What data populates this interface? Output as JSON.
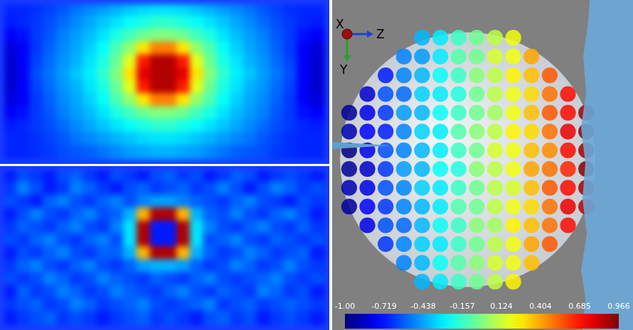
{
  "chart_data": [
    {
      "type": "heatmap",
      "tick_labels": false,
      "color_range": [
        0,
        1
      ],
      "cells": [
        [
          0.16,
          0.16,
          0.17,
          0.19,
          0.21,
          0.24,
          0.26,
          0.28,
          0.3,
          0.32,
          0.34,
          0.35,
          0.35,
          0.34,
          0.32,
          0.3,
          0.28,
          0.26,
          0.24,
          0.21,
          0.19,
          0.17,
          0.16,
          0.16
        ],
        [
          0.15,
          0.16,
          0.18,
          0.2,
          0.23,
          0.26,
          0.29,
          0.32,
          0.35,
          0.38,
          0.4,
          0.42,
          0.42,
          0.4,
          0.38,
          0.35,
          0.32,
          0.29,
          0.26,
          0.23,
          0.2,
          0.18,
          0.16,
          0.15
        ],
        [
          0.12,
          0.14,
          0.18,
          0.21,
          0.25,
          0.28,
          0.31,
          0.35,
          0.4,
          0.44,
          0.48,
          0.5,
          0.5,
          0.48,
          0.44,
          0.4,
          0.35,
          0.31,
          0.28,
          0.25,
          0.21,
          0.18,
          0.14,
          0.12
        ],
        [
          0.09,
          0.12,
          0.18,
          0.22,
          0.26,
          0.29,
          0.33,
          0.38,
          0.45,
          0.52,
          0.65,
          0.75,
          0.75,
          0.65,
          0.52,
          0.45,
          0.38,
          0.33,
          0.29,
          0.26,
          0.22,
          0.18,
          0.12,
          0.09
        ],
        [
          0.08,
          0.12,
          0.19,
          0.23,
          0.27,
          0.3,
          0.35,
          0.4,
          0.48,
          0.6,
          0.85,
          0.95,
          0.95,
          0.85,
          0.6,
          0.48,
          0.4,
          0.35,
          0.3,
          0.27,
          0.23,
          0.19,
          0.12,
          0.08
        ],
        [
          0.08,
          0.12,
          0.2,
          0.24,
          0.28,
          0.32,
          0.36,
          0.42,
          0.5,
          0.65,
          0.9,
          0.95,
          0.95,
          0.9,
          0.65,
          0.5,
          0.42,
          0.36,
          0.32,
          0.28,
          0.24,
          0.2,
          0.12,
          0.08
        ],
        [
          0.08,
          0.12,
          0.19,
          0.23,
          0.27,
          0.3,
          0.35,
          0.4,
          0.48,
          0.6,
          0.85,
          0.95,
          0.95,
          0.85,
          0.6,
          0.48,
          0.4,
          0.35,
          0.3,
          0.27,
          0.23,
          0.19,
          0.12,
          0.08
        ],
        [
          0.09,
          0.12,
          0.18,
          0.22,
          0.26,
          0.29,
          0.33,
          0.38,
          0.45,
          0.52,
          0.65,
          0.75,
          0.75,
          0.65,
          0.52,
          0.45,
          0.38,
          0.33,
          0.29,
          0.26,
          0.22,
          0.18,
          0.12,
          0.09
        ],
        [
          0.12,
          0.14,
          0.18,
          0.21,
          0.25,
          0.28,
          0.31,
          0.35,
          0.4,
          0.44,
          0.48,
          0.5,
          0.5,
          0.48,
          0.44,
          0.4,
          0.35,
          0.31,
          0.28,
          0.25,
          0.21,
          0.18,
          0.14,
          0.12
        ],
        [
          0.15,
          0.16,
          0.18,
          0.2,
          0.23,
          0.26,
          0.29,
          0.32,
          0.35,
          0.38,
          0.4,
          0.42,
          0.42,
          0.4,
          0.38,
          0.35,
          0.32,
          0.29,
          0.26,
          0.23,
          0.2,
          0.18,
          0.16,
          0.15
        ],
        [
          0.16,
          0.16,
          0.17,
          0.19,
          0.21,
          0.24,
          0.26,
          0.28,
          0.3,
          0.32,
          0.34,
          0.35,
          0.35,
          0.34,
          0.32,
          0.3,
          0.28,
          0.26,
          0.24,
          0.21,
          0.19,
          0.17,
          0.16,
          0.16
        ],
        [
          0.16,
          0.16,
          0.17,
          0.18,
          0.2,
          0.21,
          0.22,
          0.24,
          0.26,
          0.28,
          0.29,
          0.3,
          0.3,
          0.29,
          0.28,
          0.26,
          0.24,
          0.22,
          0.21,
          0.2,
          0.18,
          0.17,
          0.16,
          0.16
        ]
      ]
    },
    {
      "type": "heatmap",
      "tick_labels": false,
      "color_range": [
        0,
        1
      ],
      "cells": [
        [
          0.15,
          0.2,
          0.18,
          0.15,
          0.2,
          0.22,
          0.18,
          0.15,
          0.2,
          0.18,
          0.15,
          0.2,
          0.22,
          0.18,
          0.2,
          0.15,
          0.18,
          0.22,
          0.2,
          0.15,
          0.18,
          0.2,
          0.18,
          0.15
        ],
        [
          0.18,
          0.25,
          0.2,
          0.15,
          0.18,
          0.25,
          0.22,
          0.18,
          0.15,
          0.2,
          0.22,
          0.18,
          0.2,
          0.22,
          0.18,
          0.2,
          0.25,
          0.2,
          0.15,
          0.2,
          0.25,
          0.22,
          0.18,
          0.2
        ],
        [
          0.2,
          0.18,
          0.15,
          0.22,
          0.25,
          0.2,
          0.18,
          0.22,
          0.25,
          0.2,
          0.25,
          0.28,
          0.28,
          0.25,
          0.22,
          0.2,
          0.18,
          0.22,
          0.25,
          0.2,
          0.18,
          0.15,
          0.2,
          0.18
        ],
        [
          0.15,
          0.2,
          0.25,
          0.2,
          0.18,
          0.22,
          0.25,
          0.2,
          0.22,
          0.3,
          0.7,
          0.95,
          0.95,
          0.7,
          0.3,
          0.22,
          0.2,
          0.25,
          0.2,
          0.18,
          0.22,
          0.25,
          0.2,
          0.15
        ],
        [
          0.18,
          0.22,
          0.2,
          0.18,
          0.22,
          0.25,
          0.2,
          0.18,
          0.25,
          0.35,
          0.95,
          0.15,
          0.15,
          0.95,
          0.35,
          0.25,
          0.2,
          0.18,
          0.22,
          0.25,
          0.2,
          0.18,
          0.22,
          0.18
        ],
        [
          0.2,
          0.18,
          0.22,
          0.25,
          0.2,
          0.18,
          0.22,
          0.25,
          0.2,
          0.35,
          0.95,
          0.15,
          0.15,
          0.95,
          0.35,
          0.2,
          0.22,
          0.25,
          0.2,
          0.18,
          0.22,
          0.2,
          0.18,
          0.2
        ],
        [
          0.15,
          0.2,
          0.18,
          0.22,
          0.25,
          0.2,
          0.18,
          0.22,
          0.22,
          0.3,
          0.7,
          0.95,
          0.95,
          0.7,
          0.3,
          0.22,
          0.18,
          0.2,
          0.25,
          0.22,
          0.18,
          0.2,
          0.22,
          0.15
        ],
        [
          0.18,
          0.22,
          0.25,
          0.2,
          0.18,
          0.22,
          0.25,
          0.2,
          0.18,
          0.22,
          0.28,
          0.3,
          0.3,
          0.28,
          0.22,
          0.18,
          0.2,
          0.25,
          0.22,
          0.18,
          0.2,
          0.25,
          0.2,
          0.18
        ],
        [
          0.2,
          0.18,
          0.2,
          0.25,
          0.22,
          0.18,
          0.2,
          0.25,
          0.22,
          0.2,
          0.18,
          0.22,
          0.2,
          0.18,
          0.22,
          0.25,
          0.2,
          0.18,
          0.2,
          0.22,
          0.25,
          0.2,
          0.18,
          0.2
        ],
        [
          0.15,
          0.22,
          0.18,
          0.2,
          0.25,
          0.22,
          0.18,
          0.2,
          0.25,
          0.22,
          0.2,
          0.18,
          0.22,
          0.25,
          0.2,
          0.18,
          0.22,
          0.2,
          0.18,
          0.25,
          0.22,
          0.18,
          0.2,
          0.15
        ],
        [
          0.18,
          0.2,
          0.22,
          0.18,
          0.2,
          0.25,
          0.22,
          0.18,
          0.2,
          0.22,
          0.25,
          0.2,
          0.18,
          0.2,
          0.22,
          0.25,
          0.18,
          0.2,
          0.22,
          0.18,
          0.2,
          0.22,
          0.2,
          0.18
        ],
        [
          0.15,
          0.18,
          0.2,
          0.22,
          0.18,
          0.2,
          0.18,
          0.15,
          0.18,
          0.2,
          0.22,
          0.18,
          0.2,
          0.18,
          0.15,
          0.2,
          0.22,
          0.18,
          0.2,
          0.15,
          0.18,
          0.2,
          0.18,
          0.15
        ]
      ]
    },
    {
      "type": "scatter",
      "tick_labels": false,
      "triad": {
        "x": "X",
        "y": "Y",
        "z": "Z"
      },
      "colorbar": {
        "range": [
          -1,
          0.966
        ],
        "ticks": [
          {
            "value": -1,
            "label": "-1.00"
          },
          -0.719,
          -0.438,
          -0.157,
          0.124,
          0.404,
          0.685,
          0.966
        ]
      },
      "cells": [
        [
          null,
          null,
          null,
          null,
          -0.4,
          -0.3,
          -0.15,
          -0.05,
          0.1,
          0.2,
          null,
          null,
          null,
          null
        ],
        [
          null,
          null,
          null,
          -0.5,
          -0.45,
          -0.3,
          -0.1,
          -0.05,
          0.15,
          0.2,
          0.4,
          null,
          null,
          null
        ],
        [
          null,
          null,
          -0.7,
          -0.5,
          -0.4,
          -0.25,
          -0.15,
          0,
          0.1,
          0.25,
          0.35,
          0.55,
          null,
          null
        ],
        [
          null,
          -0.85,
          -0.6,
          -0.55,
          -0.35,
          -0.3,
          -0.2,
          -0.05,
          0.1,
          0.2,
          0.3,
          0.5,
          0.7,
          null
        ],
        [
          -0.95,
          -0.8,
          -0.65,
          -0.45,
          -0.4,
          -0.25,
          -0.15,
          -0.05,
          0.05,
          0.2,
          0.35,
          0.55,
          0.7,
          0.9
        ],
        [
          -0.9,
          -0.75,
          -0.7,
          -0.5,
          -0.35,
          -0.3,
          -0.1,
          0,
          0.1,
          0.25,
          0.3,
          0.5,
          0.75,
          0.95
        ],
        [
          -1.0,
          -0.8,
          -0.6,
          -0.5,
          -0.4,
          -0.3,
          -0.15,
          -0.05,
          0.15,
          0.2,
          0.35,
          0.45,
          0.7,
          0.9
        ],
        [
          -0.95,
          -0.85,
          -0.65,
          -0.45,
          -0.4,
          -0.25,
          -0.2,
          0,
          0.1,
          0.2,
          0.4,
          0.5,
          0.65,
          0.95
        ],
        [
          -0.9,
          -0.8,
          -0.6,
          -0.5,
          -0.35,
          -0.3,
          -0.15,
          -0.05,
          0.1,
          0.15,
          0.35,
          0.55,
          0.7,
          0.9
        ],
        [
          -0.95,
          -0.75,
          -0.65,
          -0.5,
          -0.4,
          -0.3,
          -0.1,
          -0.05,
          0.1,
          0.2,
          0.3,
          0.5,
          0.75,
          0.85
        ],
        [
          null,
          -0.8,
          -0.6,
          -0.55,
          -0.4,
          -0.25,
          -0.15,
          0,
          0.05,
          0.25,
          0.35,
          0.5,
          0.7,
          null
        ],
        [
          null,
          null,
          -0.65,
          -0.5,
          -0.35,
          -0.3,
          -0.15,
          -0.05,
          0.1,
          0.2,
          0.4,
          0.55,
          null,
          null
        ],
        [
          null,
          null,
          null,
          -0.5,
          -0.4,
          -0.25,
          -0.1,
          0,
          0.15,
          0.2,
          0.35,
          null,
          null,
          null
        ],
        [
          null,
          null,
          null,
          null,
          -0.4,
          -0.3,
          -0.15,
          -0.05,
          0.1,
          0.25,
          null,
          null,
          null,
          null
        ]
      ]
    }
  ]
}
